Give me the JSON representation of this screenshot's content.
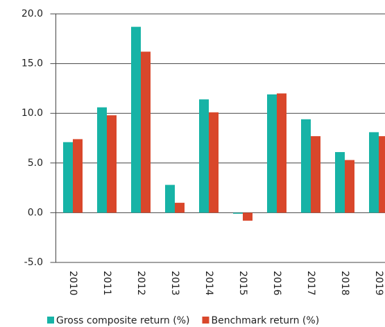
{
  "chart_data": {
    "type": "bar",
    "categories": [
      "2010",
      "2011",
      "2012",
      "2013",
      "2014",
      "2015",
      "2016",
      "2017",
      "2018",
      "2019"
    ],
    "series": [
      {
        "name": "Gross composite return (%)",
        "color": "#17b3a6",
        "values": [
          7.1,
          10.6,
          18.7,
          2.8,
          11.4,
          -0.1,
          11.9,
          9.4,
          6.1,
          8.1
        ]
      },
      {
        "name": "Benchmark return (%)",
        "color": "#d9472b",
        "values": [
          7.4,
          9.8,
          16.2,
          1.0,
          10.1,
          -0.8,
          12.0,
          7.7,
          5.3,
          7.7
        ]
      }
    ],
    "ylim": [
      -5,
      20
    ],
    "yticks": [
      {
        "value": -5,
        "label": "-5.0"
      },
      {
        "value": 0,
        "label": "0.0"
      },
      {
        "value": 5,
        "label": "5.0"
      },
      {
        "value": 10,
        "label": "10.0"
      },
      {
        "value": 15,
        "label": "15.0"
      },
      {
        "value": 20,
        "label": "20.0"
      }
    ],
    "grid": true
  }
}
